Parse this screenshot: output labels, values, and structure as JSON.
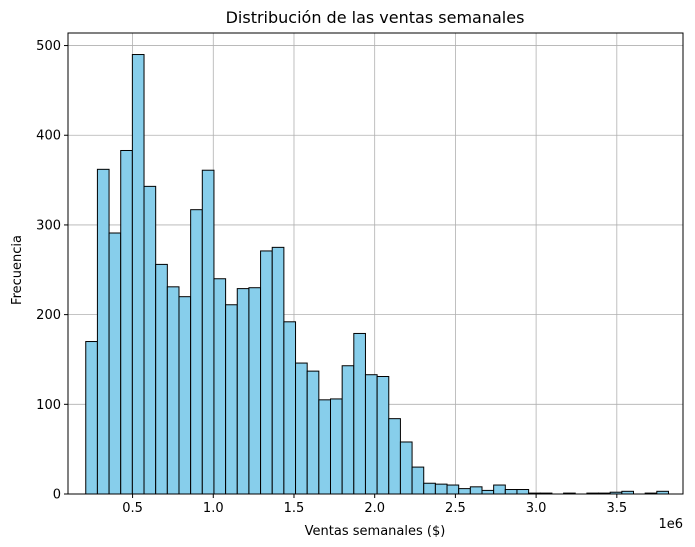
{
  "chart_data": {
    "type": "bar",
    "title": "Distribución de las ventas semanales",
    "xlabel": "Ventas semanales ($)",
    "ylabel": "Frecuencia",
    "x_offset_label": "1e6",
    "xlim": [
      0.1,
      3.91
    ],
    "ylim": [
      0,
      514
    ],
    "xticks": [
      0.5,
      1.0,
      1.5,
      2.0,
      2.5,
      3.0,
      3.5
    ],
    "xtick_labels": [
      "0.5",
      "1.0",
      "1.5",
      "2.0",
      "2.5",
      "3.0",
      "3.5"
    ],
    "yticks": [
      0,
      100,
      200,
      300,
      400,
      500
    ],
    "ytick_labels": [
      "0",
      "100",
      "200",
      "300",
      "400",
      "500"
    ],
    "grid": true,
    "bar_color": "#87CEEB",
    "edge_color": "#000000",
    "bin_start": 0.21,
    "bin_width": 0.0722,
    "values": [
      170,
      362,
      291,
      383,
      490,
      343,
      256,
      231,
      220,
      317,
      361,
      240,
      211,
      229,
      230,
      271,
      275,
      192,
      146,
      137,
      105,
      106,
      143,
      179,
      133,
      131,
      84,
      58,
      30,
      12,
      11,
      10,
      6,
      8,
      4,
      10,
      5,
      5,
      1,
      1,
      0,
      1,
      0,
      1,
      1,
      2,
      3,
      0,
      1,
      3
    ]
  }
}
